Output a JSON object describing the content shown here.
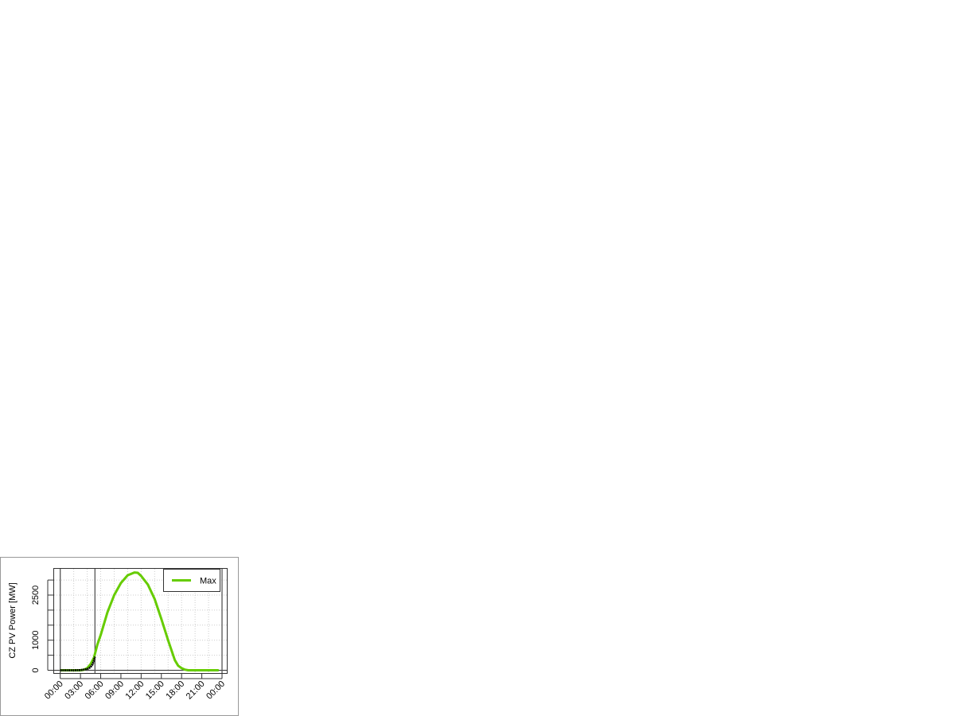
{
  "chart_data": {
    "type": "line",
    "title": "",
    "xlabel": "",
    "ylabel": "CZ PV Power [MW]",
    "x_unit": "hour of day",
    "xlim": [
      0,
      24
    ],
    "ylim": [
      0,
      3300
    ],
    "x_ticks": [
      {
        "value": 0,
        "label": "00:00"
      },
      {
        "value": 3,
        "label": "03:00"
      },
      {
        "value": 6,
        "label": "06:00"
      },
      {
        "value": 9,
        "label": "09:00"
      },
      {
        "value": 12,
        "label": "12:00"
      },
      {
        "value": 15,
        "label": "15:00"
      },
      {
        "value": 18,
        "label": "18:00"
      },
      {
        "value": 21,
        "label": "21:00"
      },
      {
        "value": 24,
        "label": "00:00"
      }
    ],
    "y_ticks": [
      {
        "value": 0,
        "label": "0"
      },
      {
        "value": 500,
        "label": ""
      },
      {
        "value": 1000,
        "label": "1000"
      },
      {
        "value": 1500,
        "label": ""
      },
      {
        "value": 2000,
        "label": ""
      },
      {
        "value": 2500,
        "label": "2500"
      },
      {
        "value": 3000,
        "label": ""
      }
    ],
    "grid": true,
    "legend": {
      "position": "top-right",
      "entries": [
        {
          "label": "Max",
          "color": "#66cc00"
        }
      ]
    },
    "vertical_lines": [
      0,
      5.15,
      24
    ],
    "series": [
      {
        "name": "Max",
        "color": "#66cc00",
        "x": [
          0,
          1,
          2,
          3,
          3.5,
          4,
          4.5,
          5,
          5.5,
          6,
          7,
          8,
          9,
          10,
          11,
          11.5,
          12,
          13,
          14,
          15,
          16,
          17,
          17.5,
          18,
          18.5,
          19,
          20,
          21,
          22,
          23,
          23.5
        ],
        "y": [
          0,
          0,
          0,
          0,
          15,
          70,
          200,
          420,
          850,
          1170,
          1925,
          2500,
          2900,
          3160,
          3250,
          3240,
          3135,
          2850,
          2370,
          1700,
          1000,
          335,
          150,
          70,
          20,
          0,
          0,
          0,
          0,
          0,
          0
        ]
      },
      {
        "color": "#000000",
        "x": [
          0,
          1,
          2,
          3,
          3.5,
          4,
          4.5,
          4.8,
          5,
          5.15
        ],
        "y": [
          0,
          0,
          0,
          5,
          20,
          40,
          100,
          200,
          330,
          450
        ]
      }
    ]
  }
}
